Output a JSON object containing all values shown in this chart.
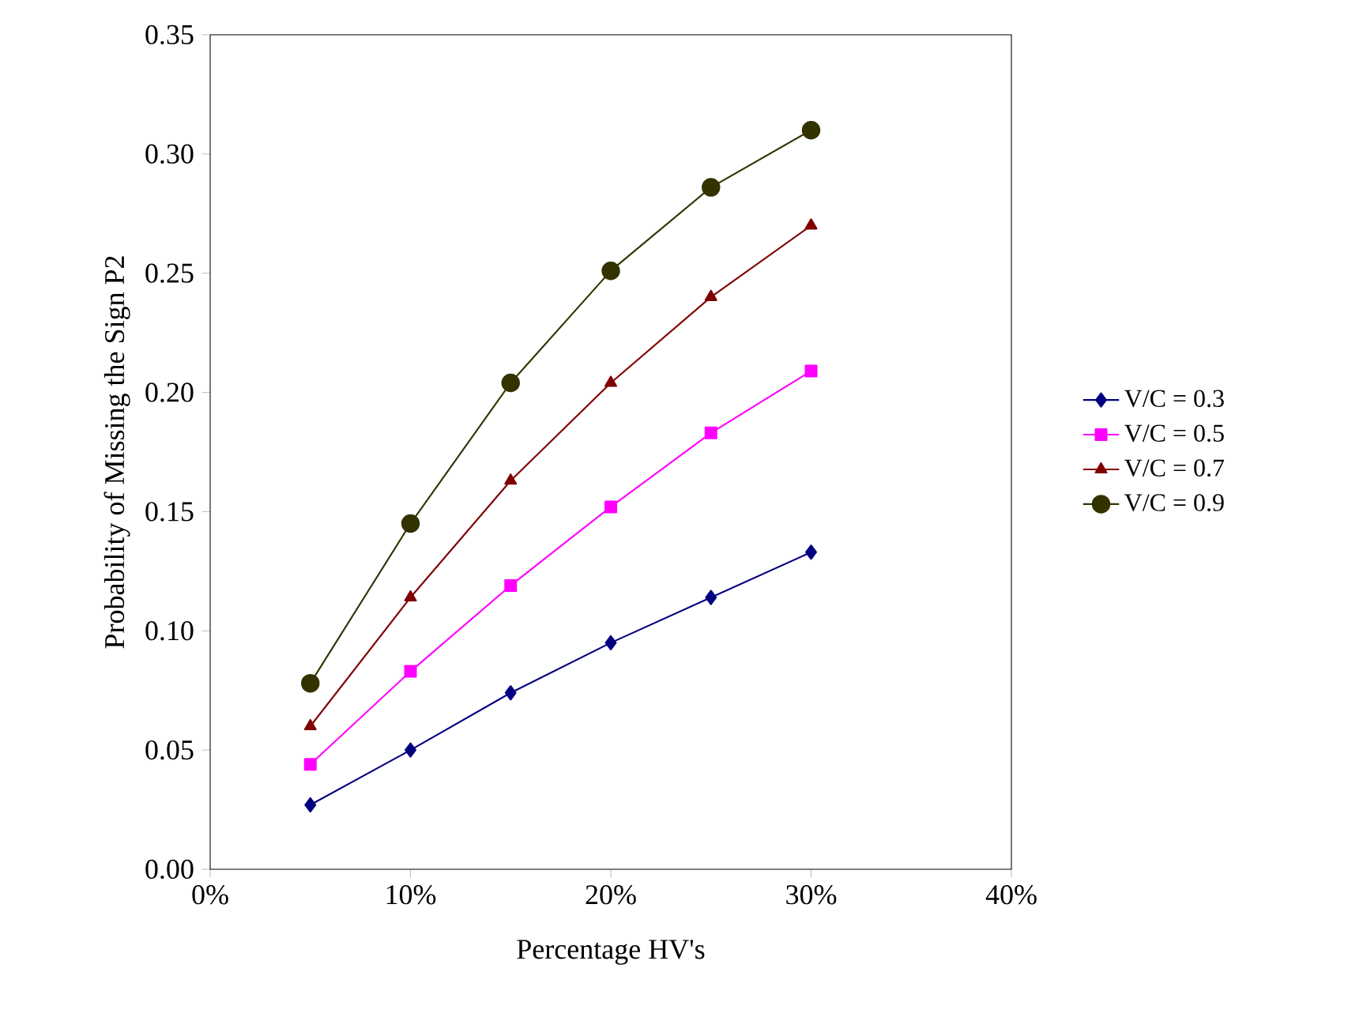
{
  "chart_data": {
    "type": "line",
    "xlabel": "Percentage HV's",
    "ylabel": "Probability of Missing the Sign P2",
    "x": [
      5,
      10,
      15,
      20,
      25,
      30
    ],
    "xlim": [
      0,
      40
    ],
    "xticks": [
      {
        "value": 0,
        "label": "0%"
      },
      {
        "value": 10,
        "label": "10%"
      },
      {
        "value": 20,
        "label": "20%"
      },
      {
        "value": 30,
        "label": "30%"
      },
      {
        "value": 40,
        "label": "40%"
      }
    ],
    "ylim": [
      0,
      0.35
    ],
    "yticks": [
      {
        "value": 0,
        "label": "0.00"
      },
      {
        "value": 0.05,
        "label": "0.05"
      },
      {
        "value": 0.1,
        "label": "0.10"
      },
      {
        "value": 0.15,
        "label": "0.15"
      },
      {
        "value": 0.2,
        "label": "0.20"
      },
      {
        "value": 0.25,
        "label": "0.25"
      },
      {
        "value": 0.3,
        "label": "0.30"
      },
      {
        "value": 0.35,
        "label": "0.35"
      }
    ],
    "grid": false,
    "legend": "right",
    "line_style": "solid",
    "series": [
      {
        "name": "V/C = 0.3",
        "color": "#000080",
        "marker": "diamond",
        "values": [
          0.027,
          0.05,
          0.074,
          0.095,
          0.114,
          0.133
        ]
      },
      {
        "name": "V/C = 0.5",
        "color": "#ff00ff",
        "marker": "square",
        "values": [
          0.044,
          0.083,
          0.119,
          0.152,
          0.183,
          0.209
        ]
      },
      {
        "name": "V/C = 0.7",
        "color": "#800000",
        "marker": "triangle",
        "values": [
          0.06,
          0.114,
          0.163,
          0.204,
          0.24,
          0.27
        ]
      },
      {
        "name": "V/C = 0.9",
        "color": "#333300",
        "marker": "circle",
        "values": [
          0.078,
          0.145,
          0.204,
          0.251,
          0.286,
          0.31
        ]
      }
    ]
  }
}
